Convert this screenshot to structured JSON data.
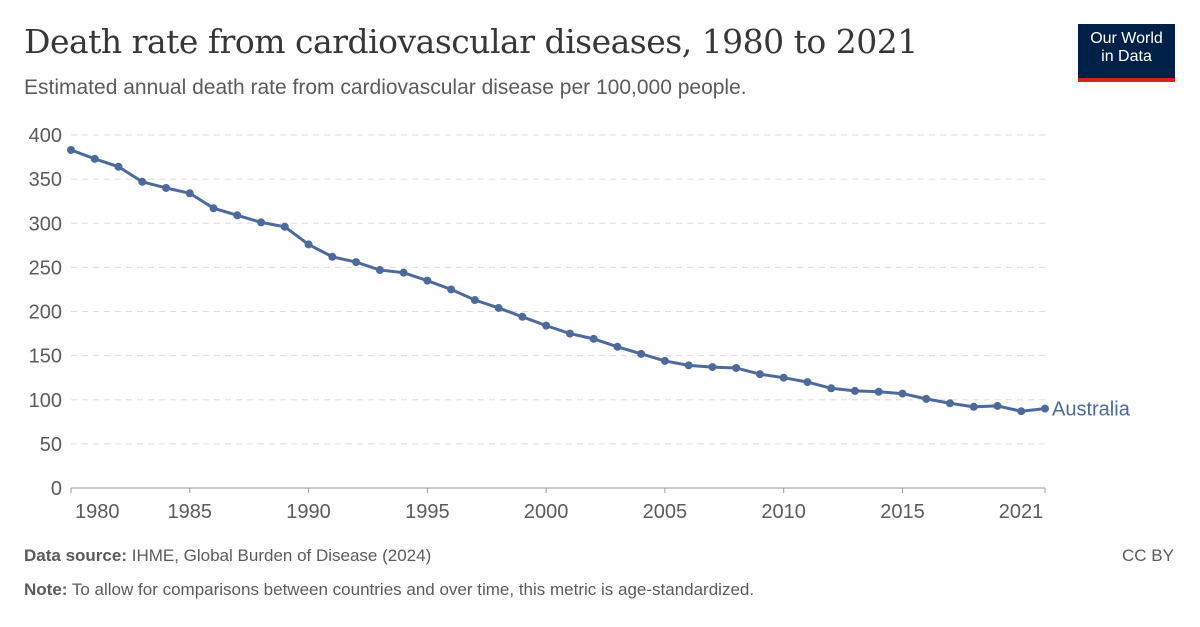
{
  "title": "Death rate from cardiovascular diseases, 1980 to 2021",
  "subtitle": "Estimated annual death rate from cardiovascular disease per 100,000 people.",
  "logo": {
    "line1": "Our World",
    "line2": "in Data"
  },
  "footer": {
    "source_label": "Data source:",
    "source": "IHME, Global Burden of Disease (2024)",
    "note_label": "Note:",
    "note": "To allow for comparisons between countries and over time, this metric is age-standardized.",
    "license": "CC BY"
  },
  "chart_data": {
    "type": "line",
    "ylim": [
      0,
      400
    ],
    "yticks": [
      0,
      50,
      100,
      150,
      200,
      250,
      300,
      350,
      400
    ],
    "xlim": [
      1980,
      2021
    ],
    "xticks": [
      1980,
      1985,
      1990,
      1995,
      2000,
      2005,
      2010,
      2015,
      2021
    ],
    "grid": "horizontal dashed",
    "series": [
      {
        "name": "Australia",
        "color": "#4c6a9c",
        "x": [
          1980,
          1981,
          1982,
          1983,
          1984,
          1985,
          1986,
          1987,
          1988,
          1989,
          1990,
          1991,
          1992,
          1993,
          1994,
          1995,
          1996,
          1997,
          1998,
          1999,
          2000,
          2001,
          2002,
          2003,
          2004,
          2005,
          2006,
          2007,
          2008,
          2009,
          2010,
          2011,
          2012,
          2013,
          2014,
          2015,
          2016,
          2017,
          2018,
          2019,
          2020,
          2021
        ],
        "values": [
          383,
          373,
          364,
          347,
          340,
          334,
          317,
          309,
          301,
          296,
          276,
          262,
          256,
          247,
          244,
          235,
          225,
          213,
          204,
          194,
          184,
          175,
          169,
          160,
          152,
          144,
          139,
          137,
          136,
          129,
          125,
          120,
          113,
          110,
          109,
          107,
          101,
          96,
          92,
          93,
          87,
          90
        ]
      }
    ]
  }
}
